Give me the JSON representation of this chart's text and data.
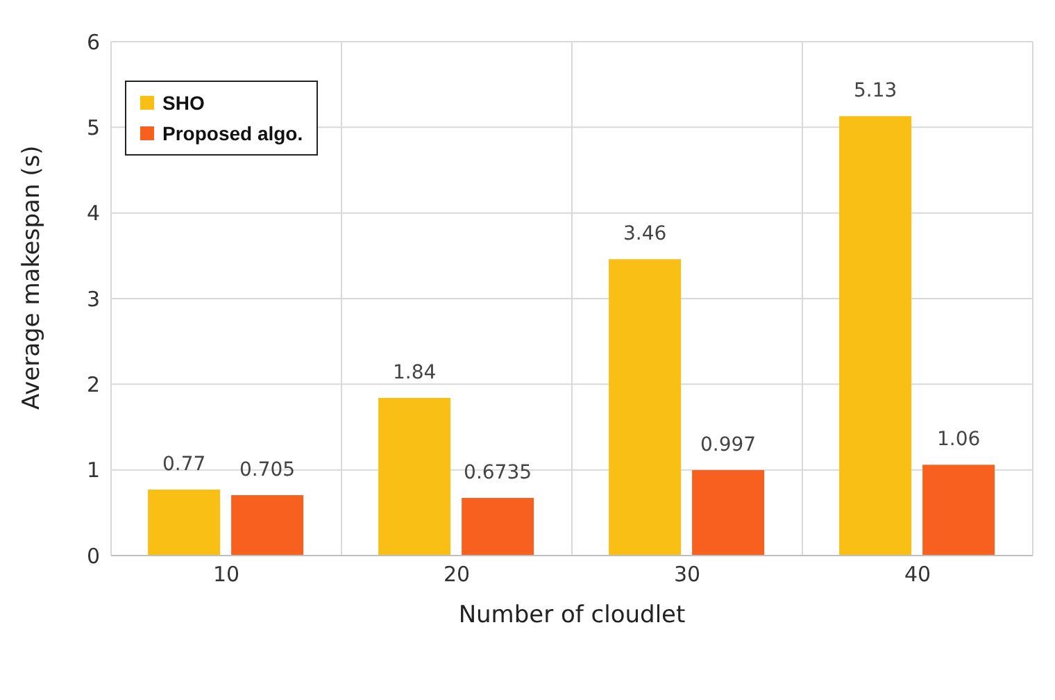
{
  "chart_data": {
    "type": "bar",
    "xlabel": "Number of cloudlet",
    "ylabel": "Average makespan (s)",
    "categories": [
      "10",
      "20",
      "30",
      "40"
    ],
    "series": [
      {
        "name": "SHO",
        "color": "#f9bf14",
        "values": [
          0.77,
          1.84,
          3.46,
          5.13
        ]
      },
      {
        "name": "Proposed algo.",
        "color": "#f8601f",
        "values": [
          0.705,
          0.6735,
          0.997,
          1.06
        ]
      }
    ],
    "ylim": [
      0,
      6
    ],
    "yticks": [
      0,
      1,
      2,
      3,
      4,
      5,
      6
    ],
    "grid": true,
    "legend": "top left",
    "data_labels": true
  }
}
